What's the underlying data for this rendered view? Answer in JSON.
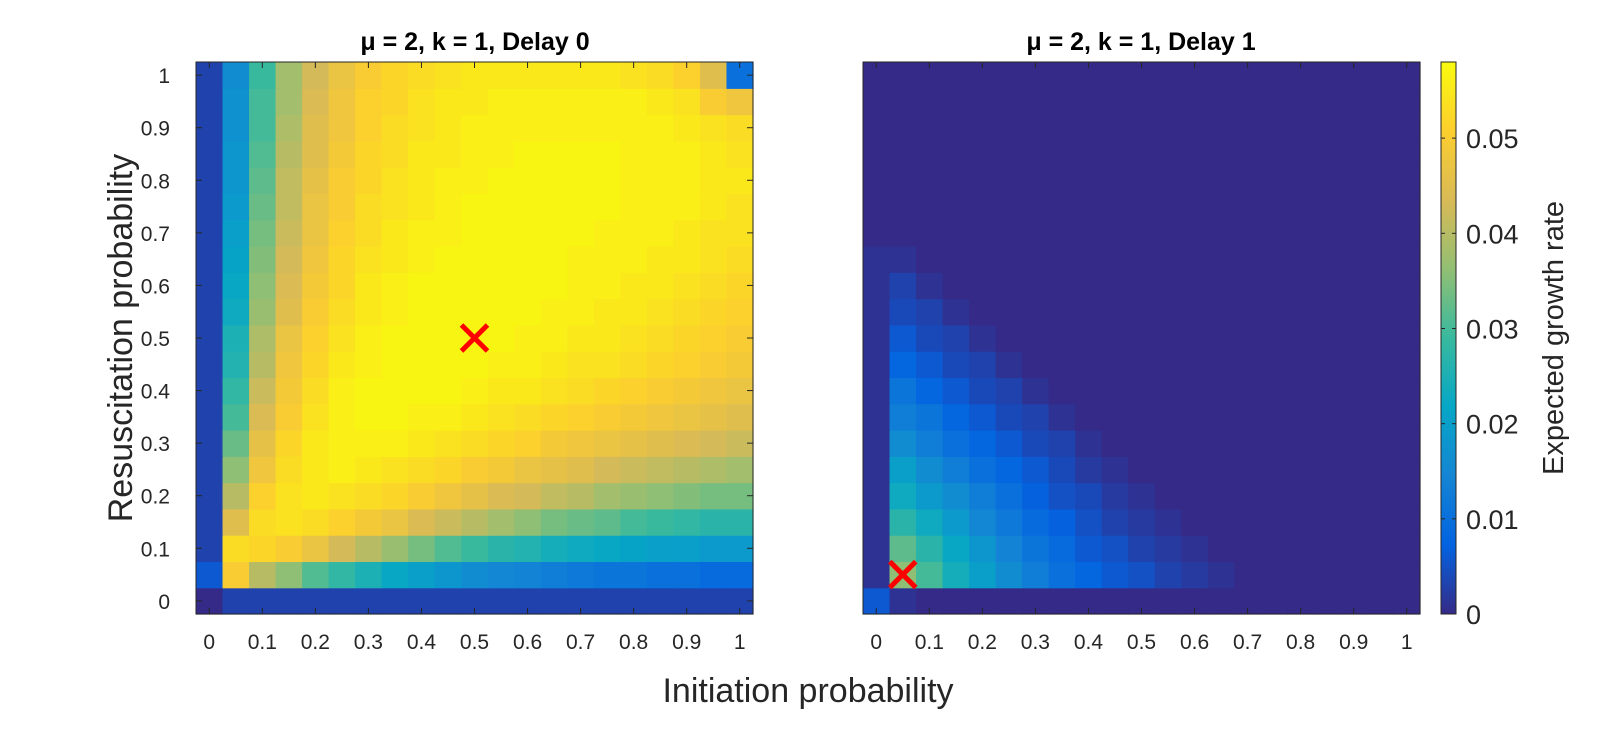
{
  "chart_data": [
    {
      "type": "heatmap",
      "title": "μ = 2, k = 1, Delay 0",
      "xlabel": "Initiation probability",
      "ylabel": "Resuscitation probability",
      "xlim": [
        -0.025,
        1.025
      ],
      "ylim": [
        -0.025,
        1.025
      ],
      "x_ticks": [
        "0",
        "0.1",
        "0.2",
        "0.3",
        "0.4",
        "0.5",
        "0.6",
        "0.7",
        "0.8",
        "0.9",
        "1"
      ],
      "y_ticks": [
        "0",
        "0.1",
        "0.2",
        "0.3",
        "0.4",
        "0.5",
        "0.6",
        "0.7",
        "0.8",
        "0.9",
        "1"
      ],
      "grid": false,
      "grid_step": 0.05,
      "values_note_units": "expected growth rate",
      "values": [
        [
          0.0,
          0.003,
          0.003,
          0.003,
          0.003,
          0.003,
          0.003,
          0.003,
          0.003,
          0.003,
          0.003,
          0.003,
          0.003,
          0.003,
          0.003,
          0.003,
          0.003,
          0.003,
          0.003,
          0.003,
          0.003
        ],
        [
          0.006,
          0.05,
          0.04,
          0.036,
          0.031,
          0.028,
          0.025,
          0.022,
          0.02,
          0.018,
          0.016,
          0.015,
          0.014,
          0.013,
          0.012,
          0.011,
          0.011,
          0.01,
          0.01,
          0.009,
          0.009
        ],
        [
          0.003,
          0.053,
          0.052,
          0.05,
          0.047,
          0.043,
          0.04,
          0.037,
          0.034,
          0.031,
          0.029,
          0.027,
          0.026,
          0.024,
          0.023,
          0.022,
          0.021,
          0.02,
          0.02,
          0.019,
          0.019
        ],
        [
          0.003,
          0.045,
          0.053,
          0.054,
          0.053,
          0.051,
          0.049,
          0.047,
          0.044,
          0.042,
          0.04,
          0.038,
          0.036,
          0.034,
          0.033,
          0.032,
          0.03,
          0.029,
          0.028,
          0.027,
          0.027
        ],
        [
          0.003,
          0.04,
          0.051,
          0.054,
          0.055,
          0.054,
          0.053,
          0.052,
          0.05,
          0.048,
          0.046,
          0.044,
          0.043,
          0.041,
          0.04,
          0.038,
          0.037,
          0.036,
          0.035,
          0.034,
          0.034
        ],
        [
          0.003,
          0.036,
          0.048,
          0.053,
          0.055,
          0.056,
          0.055,
          0.054,
          0.053,
          0.052,
          0.05,
          0.049,
          0.047,
          0.046,
          0.045,
          0.043,
          0.042,
          0.041,
          0.04,
          0.039,
          0.038
        ],
        [
          0.003,
          0.033,
          0.046,
          0.052,
          0.055,
          0.056,
          0.056,
          0.056,
          0.055,
          0.054,
          0.053,
          0.052,
          0.051,
          0.049,
          0.048,
          0.047,
          0.046,
          0.045,
          0.044,
          0.043,
          0.042
        ],
        [
          0.003,
          0.03,
          0.044,
          0.05,
          0.054,
          0.056,
          0.057,
          0.057,
          0.056,
          0.056,
          0.055,
          0.054,
          0.053,
          0.052,
          0.051,
          0.05,
          0.049,
          0.048,
          0.047,
          0.046,
          0.045
        ],
        [
          0.003,
          0.028,
          0.042,
          0.049,
          0.053,
          0.056,
          0.057,
          0.057,
          0.057,
          0.057,
          0.056,
          0.055,
          0.055,
          0.054,
          0.053,
          0.052,
          0.051,
          0.05,
          0.049,
          0.048,
          0.047
        ],
        [
          0.003,
          0.026,
          0.04,
          0.048,
          0.052,
          0.055,
          0.056,
          0.057,
          0.057,
          0.057,
          0.057,
          0.056,
          0.056,
          0.055,
          0.054,
          0.054,
          0.053,
          0.052,
          0.051,
          0.05,
          0.049
        ],
        [
          0.003,
          0.025,
          0.039,
          0.047,
          0.051,
          0.054,
          0.056,
          0.057,
          0.057,
          0.057,
          0.057,
          0.057,
          0.056,
          0.056,
          0.055,
          0.055,
          0.054,
          0.053,
          0.052,
          0.051,
          0.05
        ],
        [
          0.003,
          0.023,
          0.037,
          0.045,
          0.05,
          0.053,
          0.055,
          0.056,
          0.057,
          0.057,
          0.057,
          0.057,
          0.057,
          0.056,
          0.056,
          0.055,
          0.055,
          0.054,
          0.053,
          0.052,
          0.051
        ],
        [
          0.003,
          0.022,
          0.036,
          0.044,
          0.049,
          0.052,
          0.055,
          0.056,
          0.057,
          0.057,
          0.057,
          0.057,
          0.057,
          0.057,
          0.056,
          0.056,
          0.055,
          0.055,
          0.054,
          0.053,
          0.052
        ],
        [
          0.003,
          0.021,
          0.035,
          0.043,
          0.048,
          0.052,
          0.054,
          0.055,
          0.056,
          0.057,
          0.057,
          0.057,
          0.057,
          0.057,
          0.056,
          0.056,
          0.056,
          0.055,
          0.055,
          0.054,
          0.053
        ],
        [
          0.003,
          0.02,
          0.034,
          0.042,
          0.047,
          0.051,
          0.053,
          0.055,
          0.056,
          0.056,
          0.057,
          0.057,
          0.057,
          0.057,
          0.057,
          0.056,
          0.056,
          0.056,
          0.055,
          0.054,
          0.054
        ],
        [
          0.003,
          0.019,
          0.033,
          0.041,
          0.047,
          0.05,
          0.053,
          0.054,
          0.055,
          0.056,
          0.057,
          0.057,
          0.057,
          0.057,
          0.057,
          0.057,
          0.056,
          0.056,
          0.056,
          0.055,
          0.054
        ],
        [
          0.003,
          0.018,
          0.032,
          0.041,
          0.046,
          0.05,
          0.052,
          0.054,
          0.055,
          0.056,
          0.056,
          0.057,
          0.057,
          0.057,
          0.057,
          0.057,
          0.056,
          0.056,
          0.056,
          0.055,
          0.055
        ],
        [
          0.003,
          0.018,
          0.031,
          0.04,
          0.045,
          0.049,
          0.052,
          0.053,
          0.055,
          0.055,
          0.056,
          0.056,
          0.057,
          0.057,
          0.057,
          0.057,
          0.056,
          0.056,
          0.056,
          0.055,
          0.054
        ],
        [
          0.003,
          0.017,
          0.03,
          0.039,
          0.045,
          0.048,
          0.051,
          0.053,
          0.054,
          0.055,
          0.056,
          0.056,
          0.056,
          0.056,
          0.056,
          0.056,
          0.056,
          0.056,
          0.055,
          0.054,
          0.053
        ],
        [
          0.003,
          0.017,
          0.03,
          0.038,
          0.044,
          0.048,
          0.051,
          0.052,
          0.054,
          0.055,
          0.055,
          0.056,
          0.056,
          0.056,
          0.056,
          0.056,
          0.056,
          0.055,
          0.054,
          0.05,
          0.048
        ],
        [
          0.003,
          0.016,
          0.029,
          0.038,
          0.043,
          0.047,
          0.05,
          0.052,
          0.053,
          0.054,
          0.055,
          0.055,
          0.055,
          0.055,
          0.055,
          0.055,
          0.054,
          0.053,
          0.051,
          0.045,
          0.01
        ]
      ],
      "marker": {
        "x": 0.5,
        "y": 0.5,
        "symbol": "x",
        "color": "#ff0000"
      }
    },
    {
      "type": "heatmap",
      "title": "μ = 2, k = 1, Delay 1",
      "xlabel": "Initiation probability",
      "xlim": [
        -0.025,
        1.025
      ],
      "ylim": [
        -0.025,
        1.025
      ],
      "x_ticks": [
        "0",
        "0.1",
        "0.2",
        "0.3",
        "0.4",
        "0.5",
        "0.6",
        "0.7",
        "0.8",
        "0.9",
        "1"
      ],
      "grid": false,
      "grid_step": 0.05,
      "values": [
        [
          0.006,
          0.001,
          0.0,
          0.0,
          0.0,
          0.0,
          0.0,
          0.0,
          0.0,
          0.0,
          0.0,
          0.0,
          0.0,
          0.0,
          0.0,
          0.0,
          0.0,
          0.0,
          0.0,
          0.0,
          0.0
        ],
        [
          0.001,
          0.036,
          0.03,
          0.024,
          0.02,
          0.016,
          0.013,
          0.01,
          0.008,
          0.006,
          0.005,
          0.003,
          0.002,
          0.001,
          0.0,
          0.0,
          0.0,
          0.0,
          0.0,
          0.0,
          0.0
        ],
        [
          0.001,
          0.032,
          0.027,
          0.022,
          0.018,
          0.014,
          0.011,
          0.009,
          0.006,
          0.005,
          0.003,
          0.002,
          0.001,
          0.0,
          0.0,
          0.0,
          0.0,
          0.0,
          0.0,
          0.0,
          0.0
        ],
        [
          0.001,
          0.027,
          0.023,
          0.019,
          0.015,
          0.012,
          0.009,
          0.007,
          0.005,
          0.003,
          0.002,
          0.001,
          0.0,
          0.0,
          0.0,
          0.0,
          0.0,
          0.0,
          0.0,
          0.0,
          0.0
        ],
        [
          0.001,
          0.023,
          0.019,
          0.016,
          0.013,
          0.01,
          0.007,
          0.005,
          0.004,
          0.002,
          0.001,
          0.0,
          0.0,
          0.0,
          0.0,
          0.0,
          0.0,
          0.0,
          0.0,
          0.0,
          0.0
        ],
        [
          0.001,
          0.02,
          0.016,
          0.013,
          0.01,
          0.008,
          0.006,
          0.004,
          0.002,
          0.001,
          0.0,
          0.0,
          0.0,
          0.0,
          0.0,
          0.0,
          0.0,
          0.0,
          0.0,
          0.0,
          0.0
        ],
        [
          0.001,
          0.016,
          0.013,
          0.01,
          0.008,
          0.006,
          0.004,
          0.003,
          0.001,
          0.0,
          0.0,
          0.0,
          0.0,
          0.0,
          0.0,
          0.0,
          0.0,
          0.0,
          0.0,
          0.0,
          0.0
        ],
        [
          0.001,
          0.013,
          0.011,
          0.008,
          0.006,
          0.004,
          0.003,
          0.001,
          0.0,
          0.0,
          0.0,
          0.0,
          0.0,
          0.0,
          0.0,
          0.0,
          0.0,
          0.0,
          0.0,
          0.0,
          0.0
        ],
        [
          0.001,
          0.011,
          0.008,
          0.006,
          0.004,
          0.003,
          0.001,
          0.0,
          0.0,
          0.0,
          0.0,
          0.0,
          0.0,
          0.0,
          0.0,
          0.0,
          0.0,
          0.0,
          0.0,
          0.0,
          0.0
        ],
        [
          0.001,
          0.008,
          0.006,
          0.004,
          0.003,
          0.001,
          0.0,
          0.0,
          0.0,
          0.0,
          0.0,
          0.0,
          0.0,
          0.0,
          0.0,
          0.0,
          0.0,
          0.0,
          0.0,
          0.0,
          0.0
        ],
        [
          0.001,
          0.006,
          0.004,
          0.003,
          0.001,
          0.0,
          0.0,
          0.0,
          0.0,
          0.0,
          0.0,
          0.0,
          0.0,
          0.0,
          0.0,
          0.0,
          0.0,
          0.0,
          0.0,
          0.0,
          0.0
        ],
        [
          0.001,
          0.004,
          0.003,
          0.001,
          0.0,
          0.0,
          0.0,
          0.0,
          0.0,
          0.0,
          0.0,
          0.0,
          0.0,
          0.0,
          0.0,
          0.0,
          0.0,
          0.0,
          0.0,
          0.0,
          0.0
        ],
        [
          0.001,
          0.003,
          0.001,
          0.0,
          0.0,
          0.0,
          0.0,
          0.0,
          0.0,
          0.0,
          0.0,
          0.0,
          0.0,
          0.0,
          0.0,
          0.0,
          0.0,
          0.0,
          0.0,
          0.0,
          0.0
        ],
        [
          0.001,
          0.001,
          0.0,
          0.0,
          0.0,
          0.0,
          0.0,
          0.0,
          0.0,
          0.0,
          0.0,
          0.0,
          0.0,
          0.0,
          0.0,
          0.0,
          0.0,
          0.0,
          0.0,
          0.0,
          0.0
        ],
        [
          0.0,
          0.0,
          0.0,
          0.0,
          0.0,
          0.0,
          0.0,
          0.0,
          0.0,
          0.0,
          0.0,
          0.0,
          0.0,
          0.0,
          0.0,
          0.0,
          0.0,
          0.0,
          0.0,
          0.0,
          0.0
        ],
        [
          0.0,
          0.0,
          0.0,
          0.0,
          0.0,
          0.0,
          0.0,
          0.0,
          0.0,
          0.0,
          0.0,
          0.0,
          0.0,
          0.0,
          0.0,
          0.0,
          0.0,
          0.0,
          0.0,
          0.0,
          0.0
        ],
        [
          0.0,
          0.0,
          0.0,
          0.0,
          0.0,
          0.0,
          0.0,
          0.0,
          0.0,
          0.0,
          0.0,
          0.0,
          0.0,
          0.0,
          0.0,
          0.0,
          0.0,
          0.0,
          0.0,
          0.0,
          0.0
        ],
        [
          0.0,
          0.0,
          0.0,
          0.0,
          0.0,
          0.0,
          0.0,
          0.0,
          0.0,
          0.0,
          0.0,
          0.0,
          0.0,
          0.0,
          0.0,
          0.0,
          0.0,
          0.0,
          0.0,
          0.0,
          0.0
        ],
        [
          0.0,
          0.0,
          0.0,
          0.0,
          0.0,
          0.0,
          0.0,
          0.0,
          0.0,
          0.0,
          0.0,
          0.0,
          0.0,
          0.0,
          0.0,
          0.0,
          0.0,
          0.0,
          0.0,
          0.0,
          0.0
        ],
        [
          0.0,
          0.0,
          0.0,
          0.0,
          0.0,
          0.0,
          0.0,
          0.0,
          0.0,
          0.0,
          0.0,
          0.0,
          0.0,
          0.0,
          0.0,
          0.0,
          0.0,
          0.0,
          0.0,
          0.0,
          0.0
        ],
        [
          0.0,
          0.0,
          0.0,
          0.0,
          0.0,
          0.0,
          0.0,
          0.0,
          0.0,
          0.0,
          0.0,
          0.0,
          0.0,
          0.0,
          0.0,
          0.0,
          0.0,
          0.0,
          0.0,
          0.0,
          0.0
        ]
      ],
      "marker": {
        "x": 0.05,
        "y": 0.05,
        "symbol": "x",
        "color": "#ff0000"
      }
    }
  ],
  "colorbar": {
    "label": "Expected growth rate",
    "colormap": "parula",
    "range": [
      0,
      0.058
    ],
    "ticks": [
      0,
      0.01,
      0.02,
      0.03,
      0.04,
      0.05
    ],
    "tick_labels": [
      "0",
      "0.01",
      "0.02",
      "0.03",
      "0.04",
      "0.05"
    ]
  },
  "shared_xlabel": "Initiation probability"
}
